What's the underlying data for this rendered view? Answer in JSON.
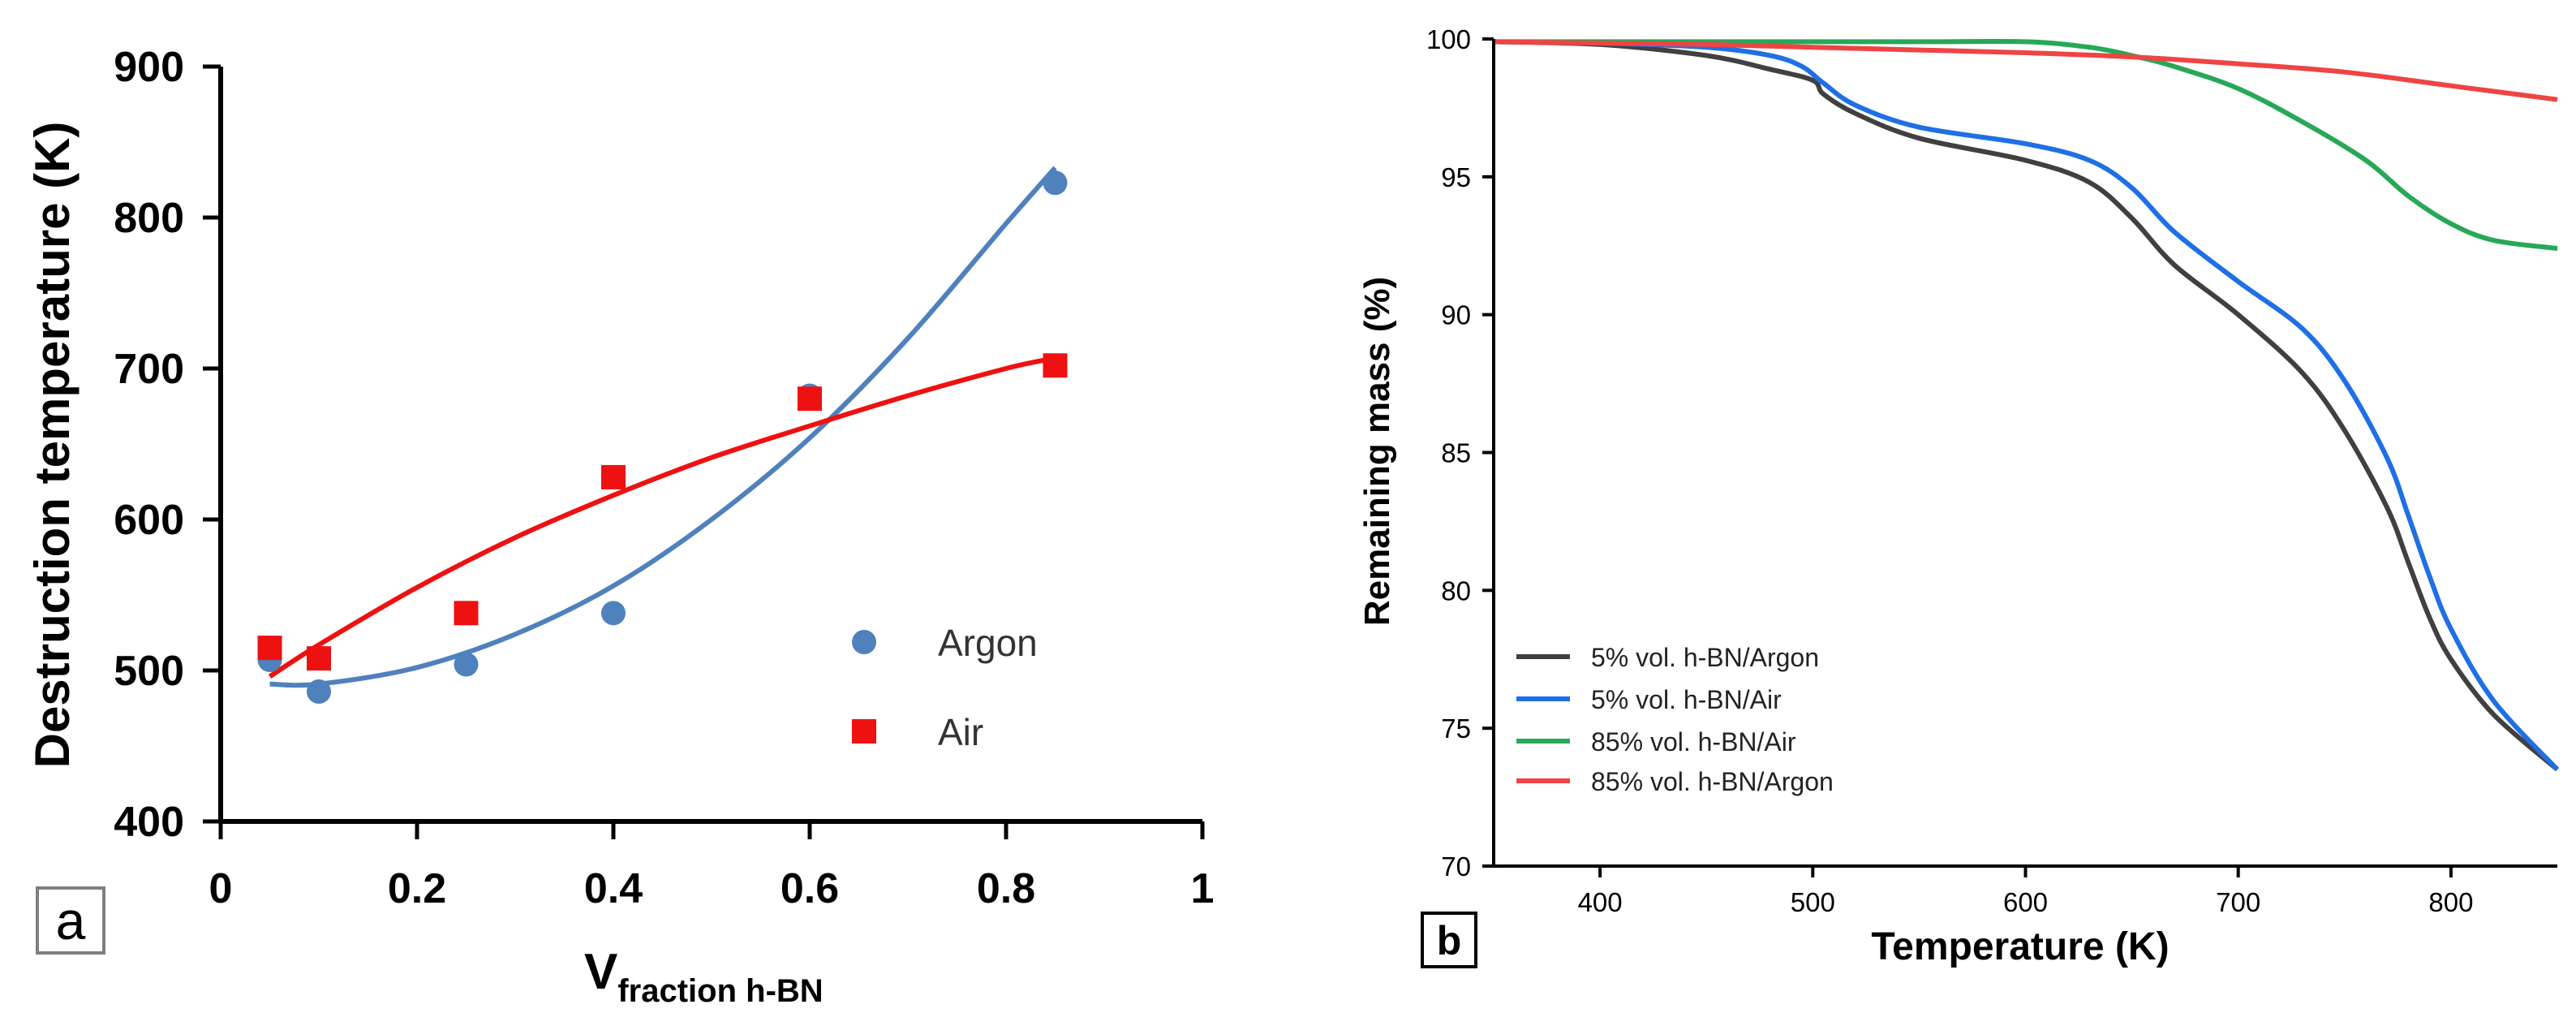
{
  "chart_data": [
    {
      "panel_label": "a",
      "type": "scatter",
      "xlabel_main": "V",
      "xlabel_sub": "fraction h-BN",
      "ylabel": "Destruction temperature (K)",
      "xlim": [
        0,
        1
      ],
      "ylim": [
        400,
        900
      ],
      "xticks": [
        "0",
        "0.2",
        "0.4",
        "0.6",
        "0.8",
        "1"
      ],
      "xtick_values": [
        0,
        0.2,
        0.4,
        0.6,
        0.8,
        1
      ],
      "yticks": [
        "400",
        "500",
        "600",
        "700",
        "800",
        "900"
      ],
      "ytick_values": [
        400,
        500,
        600,
        700,
        800,
        900
      ],
      "legend_position": "lower-right",
      "series": [
        {
          "name": "Argon",
          "color": "#4f81bd",
          "marker": "circle",
          "x": [
            0.05,
            0.1,
            0.25,
            0.4,
            0.6,
            0.85
          ],
          "y": [
            507,
            486,
            504,
            538,
            682,
            823
          ],
          "trend": {
            "x": [
              0.05,
              0.1,
              0.2,
              0.3,
              0.4,
              0.5,
              0.6,
              0.7,
              0.8,
              0.85
            ],
            "y": [
              491,
              491,
              502,
              524,
              556,
              600,
              654,
              720,
              796,
              833
            ]
          }
        },
        {
          "name": "Air",
          "color": "#ee1111",
          "marker": "square",
          "x": [
            0.05,
            0.1,
            0.25,
            0.4,
            0.6,
            0.85
          ],
          "y": [
            515,
            508,
            538,
            628,
            680,
            702
          ],
          "trend": {
            "x": [
              0.05,
              0.1,
              0.2,
              0.3,
              0.4,
              0.5,
              0.6,
              0.7,
              0.8,
              0.85
            ],
            "y": [
              496,
              517,
              555,
              588,
              616,
              641,
              662,
              682,
              700,
              707
            ]
          }
        }
      ]
    },
    {
      "panel_label": "b",
      "type": "line",
      "xlabel": "Temperature (K)",
      "ylabel": "Remaining mass (%)",
      "xlim": [
        350,
        850
      ],
      "ylim": [
        70,
        100
      ],
      "xticks": [
        "400",
        "500",
        "600",
        "700",
        "800"
      ],
      "xtick_values": [
        400,
        500,
        600,
        700,
        800
      ],
      "yticks": [
        "70",
        "75",
        "80",
        "85",
        "90",
        "95",
        "100"
      ],
      "ytick_values": [
        70,
        75,
        80,
        85,
        90,
        95,
        100
      ],
      "legend_position": "lower-left",
      "series": [
        {
          "name": "5% vol. h-BN/Argon",
          "color": "#404040",
          "x": [
            350,
            400,
            450,
            480,
            500,
            505,
            520,
            550,
            600,
            630,
            650,
            670,
            700,
            730,
            750,
            770,
            780,
            790,
            800,
            820,
            850
          ],
          "y": [
            99.9,
            99.8,
            99.4,
            98.9,
            98.5,
            98.0,
            97.3,
            96.4,
            95.6,
            94.8,
            93.5,
            91.8,
            90.0,
            87.9,
            85.8,
            83.0,
            81.0,
            79.0,
            77.5,
            75.5,
            73.5
          ]
        },
        {
          "name": "5% vol. h-BN/Air",
          "color": "#1f6fe5",
          "x": [
            350,
            400,
            450,
            480,
            495,
            505,
            520,
            550,
            600,
            630,
            650,
            670,
            700,
            730,
            750,
            770,
            780,
            790,
            800,
            820,
            850
          ],
          "y": [
            99.9,
            99.85,
            99.7,
            99.4,
            99.0,
            98.4,
            97.6,
            96.8,
            96.2,
            95.6,
            94.6,
            93.0,
            91.2,
            89.5,
            87.6,
            84.8,
            82.7,
            80.5,
            78.6,
            76.0,
            73.5
          ]
        },
        {
          "name": "85% vol. h-BN/Air",
          "color": "#27a857",
          "x": [
            350,
            450,
            550,
            600,
            630,
            650,
            670,
            700,
            730,
            760,
            780,
            800,
            820,
            850
          ],
          "y": [
            99.9,
            99.9,
            99.9,
            99.9,
            99.7,
            99.4,
            99.0,
            98.2,
            97.0,
            95.6,
            94.3,
            93.3,
            92.7,
            92.4
          ]
        },
        {
          "name": "85% vol. h-BN/Argon",
          "color": "#ee4444",
          "x": [
            350,
            400,
            450,
            500,
            550,
            600,
            650,
            700,
            750,
            800,
            850
          ],
          "y": [
            99.9,
            99.85,
            99.8,
            99.7,
            99.6,
            99.5,
            99.35,
            99.1,
            98.8,
            98.3,
            97.8
          ]
        }
      ]
    }
  ]
}
